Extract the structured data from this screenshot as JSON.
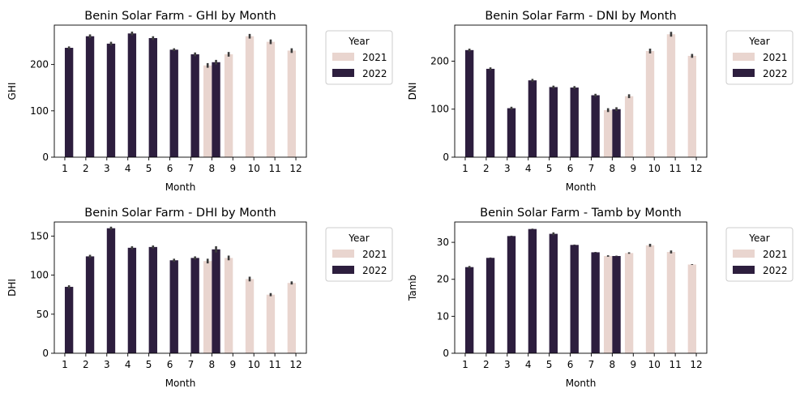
{
  "colors": {
    "2021": "#e9d5cf",
    "2022": "#2d1e3e",
    "axis": "#000000",
    "errbar": "#3c3c3c",
    "legend_border": "#cccccc"
  },
  "chart_data": [
    {
      "type": "bar",
      "title": "Benin Solar Farm - GHI by Month",
      "xlabel": "Month",
      "ylabel": "GHI",
      "ylim": [
        0,
        285
      ],
      "yticks": [
        0,
        100,
        200
      ],
      "categories": [
        "1",
        "2",
        "3",
        "4",
        "5",
        "6",
        "7",
        "8",
        "9",
        "10",
        "11",
        "12"
      ],
      "legend": {
        "title": "Year",
        "position": "outside-right"
      },
      "series": [
        {
          "name": "2021",
          "values": [
            null,
            null,
            null,
            null,
            null,
            null,
            null,
            198,
            222,
            261,
            249,
            230
          ],
          "errors": [
            null,
            null,
            null,
            null,
            null,
            null,
            null,
            5,
            5,
            5,
            5,
            5
          ]
        },
        {
          "name": "2022",
          "values": [
            236,
            261,
            245,
            267,
            257,
            232,
            222,
            205,
            null,
            null,
            null,
            null
          ],
          "errors": [
            3,
            4,
            4,
            4,
            4,
            3,
            4,
            5,
            null,
            null,
            null,
            null
          ]
        }
      ]
    },
    {
      "type": "bar",
      "title": "Benin Solar Farm - DNI by Month",
      "xlabel": "Month",
      "ylabel": "DNI",
      "ylim": [
        0,
        275
      ],
      "yticks": [
        0,
        100,
        200
      ],
      "categories": [
        "1",
        "2",
        "3",
        "4",
        "5",
        "6",
        "7",
        "8",
        "9",
        "10",
        "11",
        "12"
      ],
      "legend": {
        "title": "Year",
        "position": "outside-right"
      },
      "series": [
        {
          "name": "2021",
          "values": [
            null,
            null,
            null,
            null,
            null,
            null,
            null,
            98,
            127,
            221,
            256,
            211
          ],
          "errors": [
            null,
            null,
            null,
            null,
            null,
            null,
            null,
            4,
            4,
            5,
            5,
            4
          ]
        },
        {
          "name": "2022",
          "values": [
            223,
            184,
            102,
            160,
            146,
            145,
            129,
            100,
            null,
            null,
            null,
            null
          ],
          "errors": [
            3,
            3,
            3,
            3,
            3,
            3,
            3,
            4,
            null,
            null,
            null,
            null
          ]
        }
      ]
    },
    {
      "type": "bar",
      "title": "Benin Solar Farm - DHI by Month",
      "xlabel": "Month",
      "ylabel": "DHI",
      "ylim": [
        0,
        168
      ],
      "yticks": [
        0,
        50,
        100,
        150
      ],
      "categories": [
        "1",
        "2",
        "3",
        "4",
        "5",
        "6",
        "7",
        "8",
        "9",
        "10",
        "11",
        "12"
      ],
      "legend": {
        "title": "Year",
        "position": "outside-right"
      },
      "series": [
        {
          "name": "2021",
          "values": [
            null,
            null,
            null,
            null,
            null,
            null,
            null,
            118,
            122,
            95,
            75,
            90
          ],
          "errors": [
            null,
            null,
            null,
            null,
            null,
            null,
            null,
            3,
            3,
            3,
            2,
            2
          ]
        },
        {
          "name": "2022",
          "values": [
            85,
            124,
            160,
            135,
            136,
            119,
            122,
            133,
            null,
            null,
            null,
            null
          ],
          "errors": [
            2,
            2,
            2,
            2,
            2,
            2,
            2,
            4,
            null,
            null,
            null,
            null
          ]
        }
      ]
    },
    {
      "type": "bar",
      "title": "Benin Solar Farm - Tamb by Month",
      "xlabel": "Month",
      "ylabel": "Tamb",
      "ylim": [
        0,
        35.5
      ],
      "yticks": [
        0,
        10,
        20,
        30
      ],
      "categories": [
        "1",
        "2",
        "3",
        "4",
        "5",
        "6",
        "7",
        "8",
        "9",
        "10",
        "11",
        "12"
      ],
      "legend": {
        "title": "Year",
        "position": "outside-right"
      },
      "series": [
        {
          "name": "2021",
          "values": [
            null,
            null,
            null,
            null,
            null,
            null,
            null,
            26.3,
            27.1,
            29.2,
            27.4,
            24.0
          ],
          "errors": [
            null,
            null,
            null,
            null,
            null,
            null,
            null,
            0.2,
            0.2,
            0.4,
            0.4,
            0.1
          ]
        },
        {
          "name": "2022",
          "values": [
            23.3,
            25.8,
            31.7,
            33.6,
            32.3,
            29.3,
            27.3,
            26.3,
            null,
            null,
            null,
            null
          ],
          "errors": [
            0.3,
            0.1,
            0.1,
            0.1,
            0.4,
            0.1,
            0.1,
            0.1,
            null,
            null,
            null,
            null
          ]
        }
      ]
    }
  ]
}
